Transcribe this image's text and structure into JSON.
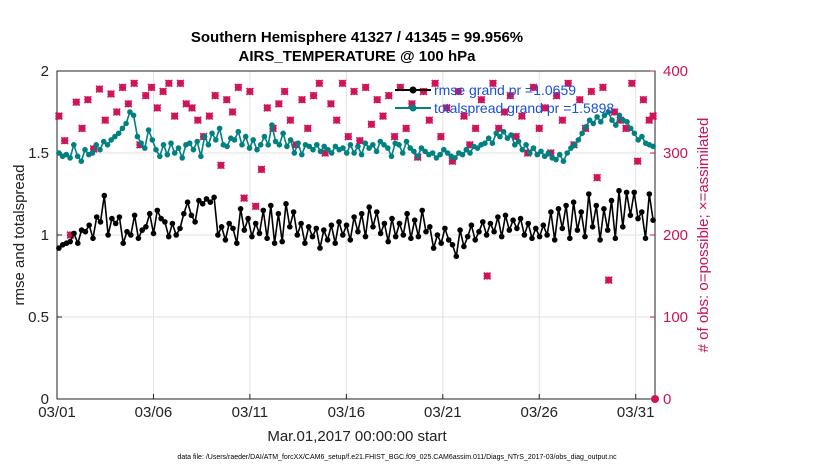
{
  "chart_data": {
    "type": "line",
    "title": "Southern Hemisphere 41327 / 41345 = 99.956%",
    "subtitle": "AIRS_TEMPERATURE @ 100 hPa",
    "xlabel": "Mar.01,2017 00:00:00 start",
    "ylabel": "rmse and totalspread",
    "ylabel_right": "# of obs: o=possible; ×=assimilated",
    "xlim": [
      0,
      31
    ],
    "ylim": [
      0,
      2
    ],
    "ylim_right": [
      0,
      400
    ],
    "x_ticks": [
      0,
      5,
      10,
      15,
      20,
      25,
      30
    ],
    "x_tick_labels": [
      "03/01",
      "03/06",
      "03/11",
      "03/16",
      "03/21",
      "03/26",
      "03/31"
    ],
    "y_tick_labels": [
      "0",
      "0.5",
      "1",
      "1.5",
      "2"
    ],
    "y_ticks_right": [
      0,
      100,
      200,
      300,
      400
    ],
    "y_tick_labels_right": [
      "0",
      "100",
      "200",
      "300",
      "400"
    ],
    "grid": true,
    "legend_position": "top-right",
    "colors": {
      "rmse": "#000000",
      "spread": "#008080",
      "obs": "#d0145a"
    },
    "series": [
      {
        "name": "rmse grand pr =1.0659",
        "values": [
          0.92,
          0.94,
          0.95,
          0.96,
          1.01,
          0.95,
          1.03,
          1.02,
          1.06,
          0.98,
          1.11,
          1.08,
          1.24,
          1.0,
          1.1,
          1.07,
          1.11,
          0.95,
          1.02,
          1.0,
          1.12,
          0.98,
          1.03,
          1.05,
          1.13,
          1.01,
          1.15,
          1.1,
          1.08,
          0.99,
          1.07,
          1.0,
          1.04,
          1.13,
          1.2,
          1.12,
          1.08,
          1.21,
          1.19,
          1.22,
          1.2,
          1.23,
          1.0,
          1.05,
          0.97,
          1.07,
          1.04,
          0.95,
          1.16,
          1.03,
          1.1,
          0.99,
          1.07,
          1.01,
          1.15,
          0.98,
          1.18,
          0.95,
          1.13,
          0.96,
          1.19,
          1.05,
          1.14,
          1.0,
          1.07,
          0.95,
          1.05,
          0.99,
          1.04,
          0.92,
          1.03,
          0.97,
          1.06,
          0.95,
          1.08,
          1.0,
          1.06,
          0.97,
          1.11,
          1.02,
          1.13,
          0.99,
          1.17,
          1.05,
          1.14,
          1.01,
          1.07,
          0.96,
          1.1,
          0.99,
          1.07,
          1.0,
          1.13,
          0.98,
          1.09,
          0.99,
          1.15,
          1.02,
          1.05,
          0.92,
          1.0,
          0.95,
          1.04,
          0.97,
          0.94,
          0.87,
          1.03,
          0.93,
          0.99,
          1.06,
          0.97,
          1.02,
          1.08,
          1.0,
          1.07,
          1.02,
          1.11,
          0.99,
          1.12,
          1.03,
          1.09,
          1.04,
          1.1,
          1.0,
          1.07,
          0.98,
          1.04,
          0.99,
          1.06,
          1.0,
          1.14,
          0.97,
          1.16,
          1.04,
          1.18,
          0.98,
          1.2,
          1.03,
          1.14,
          0.99,
          1.25,
          1.05,
          1.18,
          0.97,
          1.16,
          1.03,
          1.21,
          0.98,
          1.27,
          1.05,
          1.26,
          1.12,
          1.26,
          1.1,
          1.14,
          0.98,
          1.25,
          1.09
        ]
      },
      {
        "name": "totalspread grand pr =1.5898",
        "values": [
          1.5,
          1.48,
          1.49,
          1.47,
          1.55,
          1.48,
          1.45,
          1.52,
          1.49,
          1.5,
          1.55,
          1.52,
          1.57,
          1.55,
          1.58,
          1.6,
          1.62,
          1.65,
          1.68,
          1.75,
          1.73,
          1.6,
          1.56,
          1.53,
          1.64,
          1.58,
          1.52,
          1.48,
          1.55,
          1.49,
          1.56,
          1.5,
          1.53,
          1.47,
          1.55,
          1.56,
          1.52,
          1.57,
          1.48,
          1.6,
          1.55,
          1.62,
          1.58,
          1.65,
          1.55,
          1.54,
          1.59,
          1.58,
          1.63,
          1.55,
          1.6,
          1.53,
          1.58,
          1.52,
          1.55,
          1.6,
          1.55,
          1.67,
          1.57,
          1.55,
          1.62,
          1.54,
          1.58,
          1.5,
          1.56,
          1.49,
          1.55,
          1.54,
          1.52,
          1.55,
          1.51,
          1.54,
          1.52,
          1.5,
          1.54,
          1.52,
          1.53,
          1.5,
          1.55,
          1.5,
          1.54,
          1.49,
          1.56,
          1.53,
          1.55,
          1.51,
          1.57,
          1.55,
          1.53,
          1.48,
          1.56,
          1.55,
          1.5,
          1.57,
          1.53,
          1.51,
          1.48,
          1.53,
          1.51,
          1.49,
          1.5,
          1.47,
          1.49,
          1.52,
          1.5,
          1.48,
          1.47,
          1.5,
          1.49,
          1.52,
          1.5,
          1.54,
          1.53,
          1.55,
          1.56,
          1.59,
          1.56,
          1.62,
          1.6,
          1.63,
          1.59,
          1.61,
          1.55,
          1.57,
          1.52,
          1.55,
          1.5,
          1.53,
          1.49,
          1.51,
          1.48,
          1.5,
          1.47,
          1.46,
          1.49,
          1.45,
          1.5,
          1.53,
          1.55,
          1.58,
          1.62,
          1.66,
          1.7,
          1.68,
          1.72,
          1.69,
          1.73,
          1.75,
          1.7,
          1.67,
          1.73,
          1.7,
          1.69,
          1.65,
          1.62,
          1.58,
          1.6,
          1.56,
          1.55,
          1.54
        ]
      }
    ],
    "obs_scatter": {
      "x": [
        0.1,
        0.4,
        0.7,
        1.0,
        1.3,
        1.6,
        1.9,
        2.2,
        2.5,
        2.8,
        3.1,
        3.4,
        3.7,
        4.0,
        4.3,
        4.6,
        4.9,
        5.2,
        5.5,
        5.8,
        6.1,
        6.4,
        6.7,
        7.0,
        7.3,
        7.6,
        7.9,
        8.2,
        8.5,
        8.8,
        9.1,
        9.4,
        9.7,
        10.0,
        10.3,
        10.6,
        10.9,
        11.2,
        11.5,
        11.8,
        12.1,
        12.4,
        12.7,
        13.0,
        13.3,
        13.6,
        13.9,
        14.2,
        14.5,
        14.8,
        15.1,
        15.4,
        15.7,
        16.0,
        16.3,
        16.6,
        16.9,
        17.2,
        17.5,
        17.8,
        18.1,
        18.4,
        18.7,
        19.0,
        19.3,
        19.6,
        19.9,
        20.2,
        20.5,
        20.8,
        21.1,
        21.4,
        21.7,
        22.0,
        22.3,
        22.6,
        22.9,
        23.2,
        23.5,
        23.8,
        24.1,
        24.4,
        24.7,
        25.0,
        25.3,
        25.6,
        25.9,
        26.2,
        26.5,
        26.8,
        27.1,
        27.4,
        27.7,
        28.0,
        28.3,
        28.6,
        28.9,
        29.2,
        29.5,
        29.8,
        30.1,
        30.4,
        30.7,
        30.9
      ],
      "values": [
        345,
        315,
        200,
        362,
        330,
        365,
        305,
        378,
        340,
        372,
        350,
        380,
        360,
        385,
        310,
        370,
        380,
        355,
        375,
        385,
        345,
        385,
        360,
        355,
        340,
        320,
        345,
        370,
        285,
        365,
        350,
        380,
        245,
        375,
        235,
        280,
        355,
        330,
        360,
        375,
        340,
        310,
        365,
        330,
        370,
        385,
        300,
        360,
        340,
        385,
        320,
        375,
        315,
        380,
        335,
        365,
        345,
        370,
        320,
        380,
        330,
        360,
        295,
        375,
        340,
        385,
        320,
        355,
        290,
        375,
        345,
        310,
        330,
        365,
        150,
        385,
        330,
        350,
        370,
        320,
        345,
        300,
        380,
        330,
        355,
        300,
        370,
        340,
        385,
        310,
        365,
        330,
        375,
        270,
        380,
        145,
        350,
        340,
        330,
        385,
        290,
        365,
        340,
        345
      ]
    }
  },
  "footer_text": "data file: /Users/raeder/DAI/ATM_forcXX/CAM6_setup/f.e21.FHIST_BGC.f09_025.CAM6assim.011/Diags_NTrS_2017-03/obs_diag_output.nc"
}
